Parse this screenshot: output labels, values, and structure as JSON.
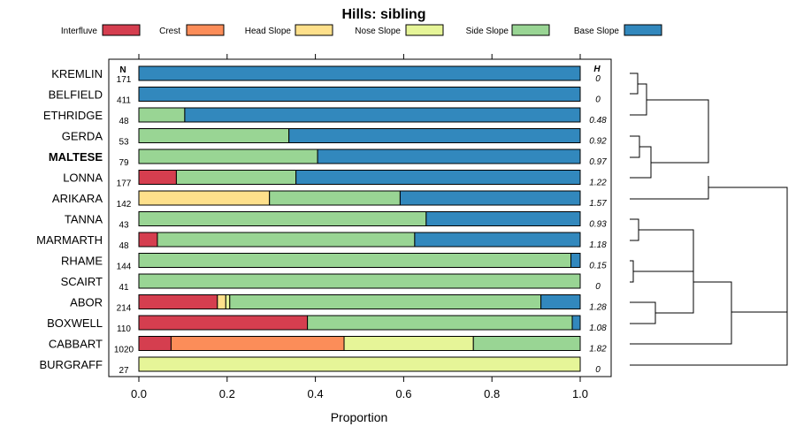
{
  "chart_data": {
    "type": "bar",
    "title": "Hills: sibling",
    "xlabel": "Proportion",
    "xlim": [
      0,
      1
    ],
    "xticks": [
      "0.0",
      "0.2",
      "0.4",
      "0.6",
      "0.8",
      "1.0"
    ],
    "n_header": "N",
    "h_header": "H",
    "legend": [
      {
        "name": "Interfluve",
        "color": "#D53E4F"
      },
      {
        "name": "Crest",
        "color": "#FC8D59"
      },
      {
        "name": "Head Slope",
        "color": "#FEE08B"
      },
      {
        "name": "Nose Slope",
        "color": "#E6F598"
      },
      {
        "name": "Side Slope",
        "color": "#99D594"
      },
      {
        "name": "Base Slope",
        "color": "#3288BD"
      }
    ],
    "rows": [
      {
        "label": "KREMLIN",
        "n": "171",
        "h": "0",
        "bold": false,
        "values": [
          0,
          0,
          0,
          0,
          0,
          1.0
        ]
      },
      {
        "label": "BELFIELD",
        "n": "411",
        "h": "0",
        "bold": false,
        "values": [
          0,
          0,
          0,
          0,
          0,
          1.0
        ]
      },
      {
        "label": "ETHRIDGE",
        "n": "48",
        "h": "0.48",
        "bold": false,
        "values": [
          0,
          0,
          0,
          0,
          0.104,
          0.896
        ]
      },
      {
        "label": "GERDA",
        "n": "53",
        "h": "0.92",
        "bold": false,
        "values": [
          0,
          0,
          0,
          0,
          0.34,
          0.66
        ]
      },
      {
        "label": "MALTESE",
        "n": "79",
        "h": "0.97",
        "bold": true,
        "values": [
          0,
          0,
          0,
          0,
          0.405,
          0.595
        ]
      },
      {
        "label": "LONNA",
        "n": "177",
        "h": "1.22",
        "bold": false,
        "values": [
          0.085,
          0,
          0,
          0,
          0.271,
          0.644
        ]
      },
      {
        "label": "ARIKARA",
        "n": "142",
        "h": "1.57",
        "bold": false,
        "values": [
          0,
          0,
          0.296,
          0,
          0.296,
          0.408
        ]
      },
      {
        "label": "TANNA",
        "n": "43",
        "h": "0.93",
        "bold": false,
        "values": [
          0,
          0,
          0,
          0,
          0.651,
          0.349
        ]
      },
      {
        "label": "MARMARTH",
        "n": "48",
        "h": "1.18",
        "bold": false,
        "values": [
          0.042,
          0,
          0,
          0,
          0.583,
          0.375
        ]
      },
      {
        "label": "RHAME",
        "n": "144",
        "h": "0.15",
        "bold": false,
        "values": [
          0,
          0,
          0,
          0,
          0.979,
          0.021
        ]
      },
      {
        "label": "SCAIRT",
        "n": "41",
        "h": "0",
        "bold": false,
        "values": [
          0,
          0,
          0,
          0,
          1.0,
          0
        ]
      },
      {
        "label": "ABOR",
        "n": "214",
        "h": "1.28",
        "bold": false,
        "values": [
          0.178,
          0,
          0.019,
          0.009,
          0.705,
          0.089
        ]
      },
      {
        "label": "BOXWELL",
        "n": "110",
        "h": "1.08",
        "bold": false,
        "values": [
          0.382,
          0,
          0,
          0,
          0.6,
          0.018
        ]
      },
      {
        "label": "CABBART",
        "n": "1020",
        "h": "1.82",
        "bold": false,
        "values": [
          0.073,
          0.392,
          0,
          0.293,
          0.242,
          0
        ]
      },
      {
        "label": "BURGRAFF",
        "n": "27",
        "h": "0",
        "bold": false,
        "values": [
          0,
          0,
          0,
          1.0,
          0,
          0
        ]
      }
    ]
  }
}
